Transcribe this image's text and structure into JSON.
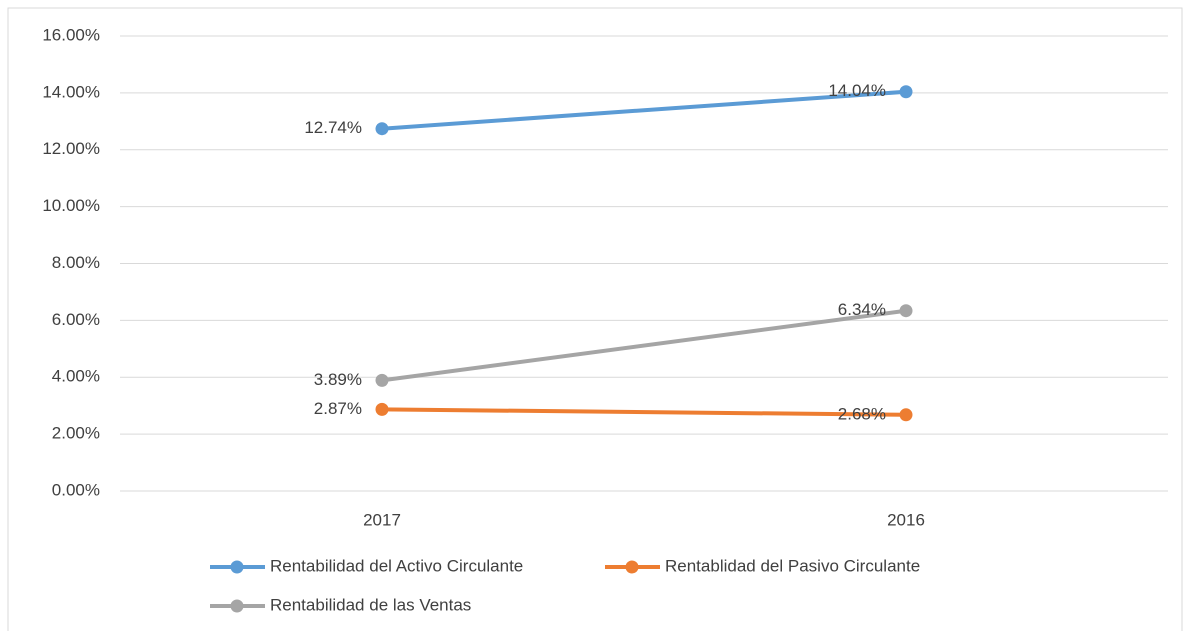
{
  "chart_data": {
    "type": "line",
    "categories": [
      "2017",
      "2016"
    ],
    "series": [
      {
        "name": "Rentabilidad del Activo Circulante",
        "color": "#5b9bd5",
        "values": [
          12.74,
          14.04
        ],
        "value_labels": [
          "12.74%",
          "14.04%"
        ]
      },
      {
        "name": "Rentablidad del Pasivo Circulante",
        "color": "#ed7d31",
        "values": [
          2.87,
          2.68
        ],
        "value_labels": [
          "2.87%",
          "2.68%"
        ]
      },
      {
        "name": "Rentabilidad de las Ventas",
        "color": "#a5a5a5",
        "values": [
          3.89,
          6.34
        ],
        "value_labels": [
          "3.89%",
          "6.34%"
        ]
      }
    ],
    "ylim": [
      0,
      16
    ],
    "yticks": [
      {
        "value": 0,
        "label": "0.00%"
      },
      {
        "value": 2,
        "label": "2.00%"
      },
      {
        "value": 4,
        "label": "4.00%"
      },
      {
        "value": 6,
        "label": "6.00%"
      },
      {
        "value": 8,
        "label": "8.00%"
      },
      {
        "value": 10,
        "label": "10.00%"
      },
      {
        "value": 12,
        "label": "12.00%"
      },
      {
        "value": 14,
        "label": "14.00%"
      },
      {
        "value": 16,
        "label": "16.00%"
      }
    ],
    "grid": true
  }
}
